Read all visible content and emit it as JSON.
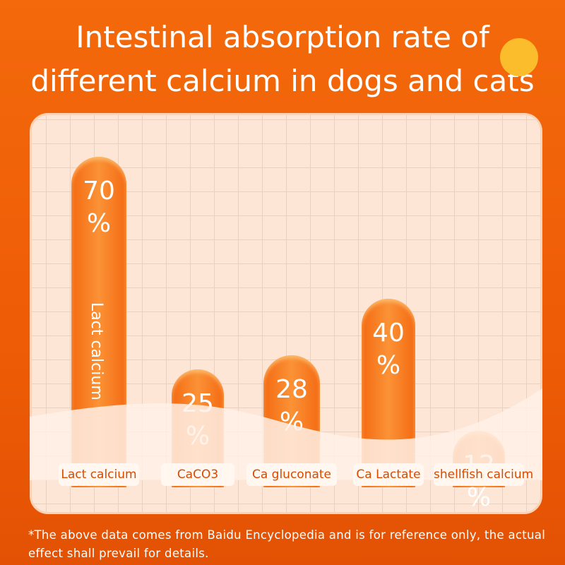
{
  "chart_data": {
    "type": "bar",
    "title": "Intestinal absorption rate of different calcium in dogs and cats",
    "categories": [
      "Lact calcium",
      "CaCO3",
      "Ca gluconate",
      "Ca Lactate",
      "shellfish calcium"
    ],
    "values": [
      70,
      25,
      28,
      40,
      12
    ],
    "value_labels": [
      "70 %",
      "25 %",
      "28 %",
      "40 %",
      "12 %"
    ],
    "color": "#f46a12",
    "annotation": "Lact calcium",
    "note": "*The above data comes from Baidu Encyclopedia and is for reference only, the actual effect shall prevail for details."
  }
}
